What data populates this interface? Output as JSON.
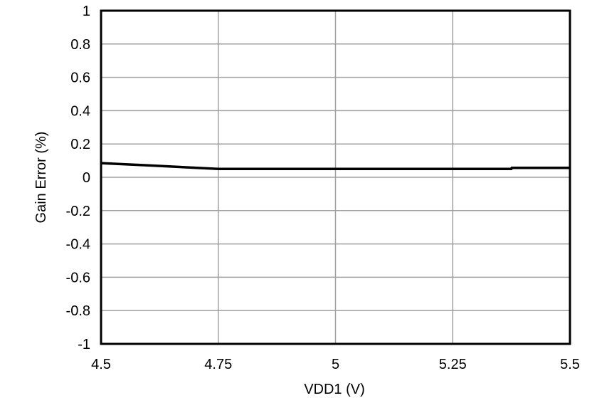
{
  "chart_data": {
    "type": "line",
    "title": "",
    "xlabel": "VDD1 (V)",
    "ylabel": "Gain Error (%)",
    "xlim": [
      4.5,
      5.5
    ],
    "ylim": [
      -1,
      1
    ],
    "x_ticks": [
      "4.5",
      "4.75",
      "5",
      "5.25",
      "5.5"
    ],
    "y_ticks": [
      "1",
      "0.8",
      "0.6",
      "0.4",
      "0.2",
      "0",
      "-0.2",
      "-0.4",
      "-0.6",
      "-0.8",
      "-1"
    ],
    "grid": true,
    "legend": null,
    "series": [
      {
        "name": "Gain Error",
        "color": "#000000",
        "x": [
          4.5,
          4.6,
          4.75,
          5.0,
          5.25,
          5.375,
          5.376,
          5.5
        ],
        "y": [
          0.085,
          0.072,
          0.05,
          0.05,
          0.05,
          0.05,
          0.057,
          0.057
        ]
      }
    ]
  }
}
